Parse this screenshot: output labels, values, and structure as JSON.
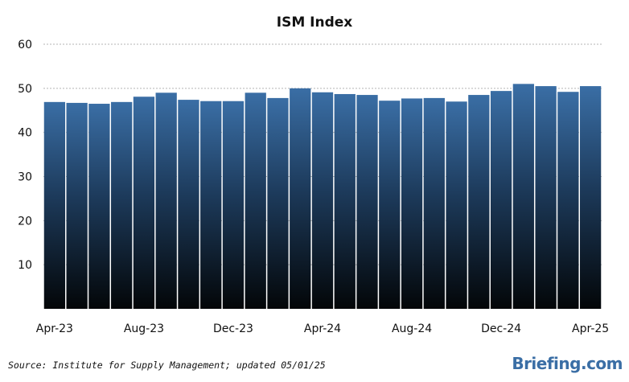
{
  "chart_data": {
    "type": "bar",
    "title": "ISM Index",
    "xlabel": "",
    "ylabel": "",
    "ylim": [
      0,
      60
    ],
    "yticks": [
      10,
      20,
      30,
      40,
      50,
      60
    ],
    "grid": true,
    "categories": [
      "Apr-23",
      "May-23",
      "Jun-23",
      "Jul-23",
      "Aug-23",
      "Sep-23",
      "Oct-23",
      "Nov-23",
      "Dec-23",
      "Jan-24",
      "Feb-24",
      "Mar-24",
      "Apr-24",
      "May-24",
      "Jun-24",
      "Jul-24",
      "Aug-24",
      "Sep-24",
      "Oct-24",
      "Nov-24",
      "Dec-24",
      "Jan-25",
      "Feb-25",
      "Mar-25",
      "Apr-25"
    ],
    "xtick_labels": [
      "Apr-23",
      "Aug-23",
      "Dec-23",
      "Apr-24",
      "Aug-24",
      "Dec-24",
      "Apr-25"
    ],
    "values": [
      46.9,
      46.7,
      46.5,
      46.9,
      48.1,
      49.0,
      47.4,
      47.1,
      47.1,
      49.0,
      47.8,
      50.0,
      49.1,
      48.7,
      48.5,
      47.2,
      47.7,
      47.8,
      47.0,
      48.5,
      49.4,
      51.0,
      50.5,
      49.2,
      50.5
    ],
    "colors": {
      "bar_top": "#3a6ea5",
      "bar_bottom": "#030608",
      "grid": "#b5b5b5"
    }
  },
  "footer": {
    "source": "Source: Institute for Supply Management; updated 05/01/25",
    "brand": "Briefing.com"
  }
}
